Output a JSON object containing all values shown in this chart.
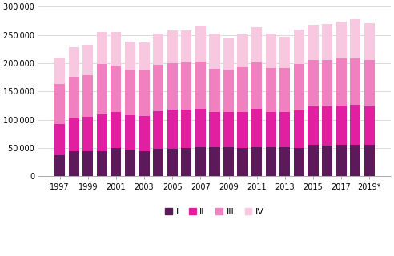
{
  "years": [
    1997,
    1998,
    1999,
    2000,
    2001,
    2002,
    2003,
    2004,
    2005,
    2006,
    2007,
    2008,
    2009,
    2010,
    2011,
    2012,
    2013,
    2014,
    2015,
    2016,
    2017,
    2018,
    2019
  ],
  "Q1": [
    38000,
    44000,
    44000,
    45000,
    50000,
    47000,
    45000,
    48000,
    49000,
    50000,
    51000,
    51000,
    51000,
    50000,
    51000,
    51000,
    51000,
    50000,
    55000,
    54000,
    55000,
    56000,
    55000
  ],
  "Q2": [
    55000,
    58000,
    61000,
    64000,
    63000,
    61000,
    62000,
    67000,
    69000,
    68000,
    68000,
    63000,
    63000,
    64000,
    68000,
    63000,
    63000,
    67000,
    68000,
    70000,
    70000,
    70000,
    68000
  ],
  "Q3": [
    70000,
    74000,
    74000,
    90000,
    82000,
    80000,
    80000,
    82000,
    82000,
    83000,
    84000,
    76000,
    75000,
    79000,
    82000,
    78000,
    78000,
    82000,
    82000,
    82000,
    83000,
    83000,
    82000
  ],
  "Q4": [
    47000,
    52000,
    53000,
    56000,
    60000,
    50000,
    50000,
    55000,
    58000,
    57000,
    63000,
    62000,
    55000,
    58000,
    63000,
    60000,
    55000,
    60000,
    63000,
    63000,
    65000,
    68000,
    66000
  ],
  "colors": [
    "#5c1a5a",
    "#e020a0",
    "#f080c0",
    "#f8c8e0"
  ],
  "ylim": [
    0,
    300000
  ],
  "yticks": [
    0,
    50000,
    100000,
    150000,
    200000,
    250000,
    300000
  ],
  "bar_width": 0.75,
  "legend_labels": [
    "I",
    "II",
    "III",
    "IV"
  ],
  "background_color": "#ffffff"
}
